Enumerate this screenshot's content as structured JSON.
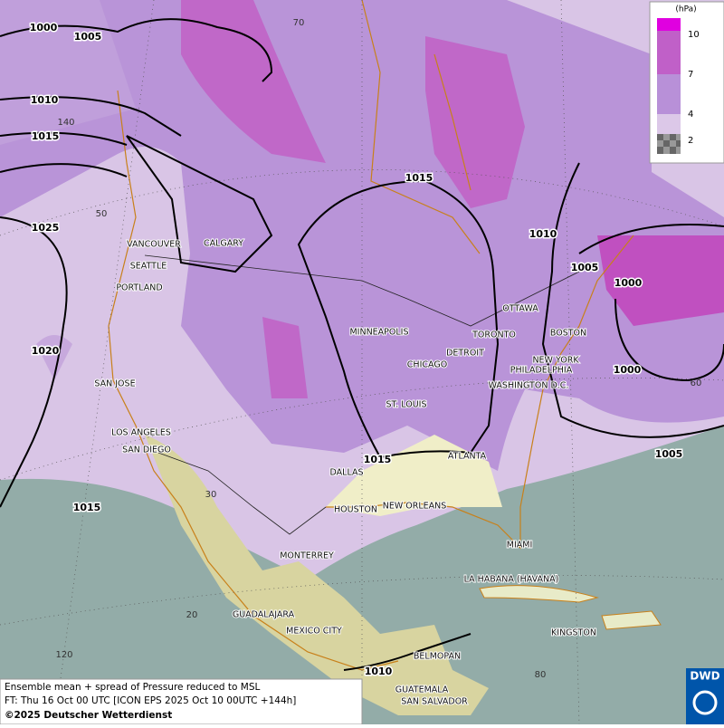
{
  "legend": {
    "unit": "(hPa)",
    "levels": [
      10,
      7,
      4,
      2
    ]
  },
  "isobar_labels": [
    1000,
    1005,
    1010,
    1015,
    1025,
    1020,
    1015,
    1015,
    1010,
    1005,
    1000,
    1000,
    1005,
    1015,
    1010
  ],
  "graticule_labels": [
    70,
    140,
    50,
    60,
    30,
    20,
    120,
    80
  ],
  "cities": [
    "VANCOUVER",
    "CALGARY",
    "SEATTLE",
    "PORTLAND",
    "MINNEAPOLIS",
    "TORONTO",
    "OTTAWA",
    "DETROIT",
    "CHICAGO",
    "BOSTON",
    "NEW YORK",
    "PHILADELPHIA",
    "WASHINGTON D.C.",
    "ST. LOUIS",
    "SAN JOSE",
    "LOS ANGELES",
    "SAN DIEGO",
    "ATLANTA",
    "DALLAS",
    "HOUSTON",
    "NEW ORLEANS",
    "MIAMI",
    "MONTERREY",
    "LA HABANA (HAVANA)",
    "GUADALAJARA",
    "MEXICO CITY",
    "KINGSTON",
    "BELMOPAN",
    "GUATEMALA",
    "SAN SALVADOR"
  ],
  "footer": {
    "line1": "Ensemble mean + spread of Pressure reduced to MSL",
    "line2": "FT: Thu 16 Oct 00 UTC [ICON EPS 2025 Oct 10 00UTC +144h]",
    "line3": "©2025 Deutscher Wetterdienst"
  },
  "logo": "DWD"
}
